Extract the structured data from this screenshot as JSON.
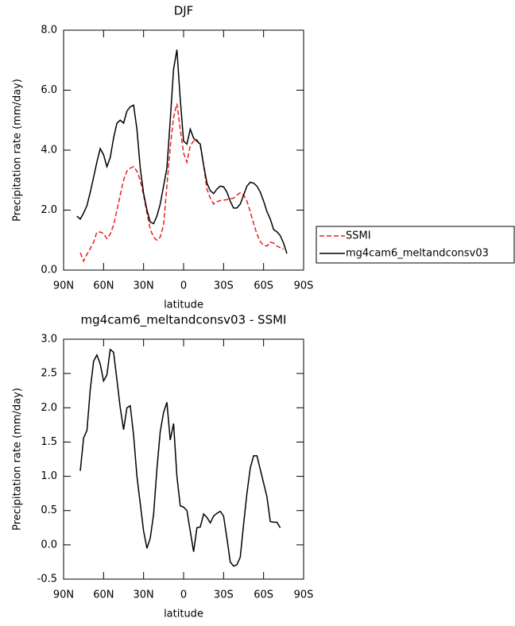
{
  "chart_data": [
    {
      "type": "line",
      "title": "DJF",
      "xlabel": "latitude",
      "ylabel": "Precipitation rate (mm/day)",
      "x": [
        80,
        77.5,
        75,
        72.5,
        70,
        67.5,
        65,
        62.5,
        60,
        57.5,
        55,
        52.5,
        50,
        47.5,
        45,
        42.5,
        40,
        37.5,
        35,
        32.5,
        30,
        27.5,
        25,
        22.5,
        20,
        17.5,
        15,
        12.5,
        10,
        7.5,
        5,
        2.5,
        0,
        -2.5,
        -5,
        -7.5,
        -10,
        -12.5,
        -15,
        -17.5,
        -20,
        -22.5,
        -25,
        -27.5,
        -30,
        -32.5,
        -35,
        -37.5,
        -40,
        -42.5,
        -45,
        -47.5,
        -50,
        -52.5,
        -55,
        -57.5,
        -60,
        -62.5,
        -65,
        -67.5,
        -70,
        -72.5,
        -75,
        -77.5
      ],
      "series": [
        {
          "name": "SSMI",
          "color": "#e8211f",
          "line_style": "dashed",
          "values": [
            null,
            0.58,
            0.3,
            0.53,
            0.72,
            0.93,
            1.27,
            1.27,
            1.22,
            1.05,
            1.2,
            1.5,
            2.0,
            2.5,
            3.0,
            3.3,
            3.4,
            3.45,
            3.3,
            3.0,
            2.5,
            1.9,
            1.35,
            1.1,
            1.0,
            1.1,
            1.5,
            2.8,
            4.1,
            5.1,
            5.55,
            4.7,
            3.9,
            3.6,
            4.15,
            4.3,
            4.35,
            4.15,
            3.5,
            2.7,
            2.4,
            2.2,
            2.28,
            2.32,
            2.33,
            2.35,
            2.38,
            2.4,
            2.5,
            2.58,
            2.5,
            2.3,
            1.95,
            1.55,
            1.2,
            0.95,
            0.83,
            0.8,
            0.93,
            0.9,
            0.8,
            0.75,
            0.7,
            null
          ]
        },
        {
          "name": "mg4cam6_meltandconsv03",
          "color": "#000000",
          "line_style": "solid",
          "values": [
            1.8,
            1.7,
            1.9,
            2.15,
            2.6,
            3.1,
            3.6,
            4.05,
            3.85,
            3.45,
            3.75,
            4.4,
            4.9,
            5.0,
            4.9,
            5.3,
            5.45,
            5.5,
            4.7,
            3.4,
            2.55,
            2.0,
            1.6,
            1.55,
            1.8,
            2.2,
            2.8,
            3.4,
            5.0,
            6.7,
            7.35,
            5.7,
            4.3,
            4.2,
            4.7,
            4.4,
            4.3,
            4.2,
            3.5,
            2.9,
            2.65,
            2.55,
            2.7,
            2.8,
            2.78,
            2.6,
            2.3,
            2.07,
            2.07,
            2.2,
            2.5,
            2.8,
            2.93,
            2.9,
            2.8,
            2.6,
            2.3,
            1.95,
            1.7,
            1.35,
            1.28,
            1.15,
            0.9,
            0.55
          ]
        }
      ],
      "xlim": [
        90,
        -90
      ],
      "xticks": [
        {
          "value": 90,
          "label": "90N"
        },
        {
          "value": 60,
          "label": "60N"
        },
        {
          "value": 30,
          "label": "30N"
        },
        0,
        {
          "value": -30,
          "label": "30S"
        },
        {
          "value": -60,
          "label": "60S"
        },
        {
          "value": -90,
          "label": "90S"
        }
      ],
      "ylim": [
        0,
        8
      ],
      "yticks": [
        {
          "value": 0,
          "label": "0.0"
        },
        {
          "value": 2,
          "label": "2.0"
        },
        {
          "value": 4,
          "label": "4.0"
        },
        {
          "value": 6,
          "label": "6.0"
        },
        {
          "value": 8,
          "label": "8.0"
        }
      ],
      "legend": "right"
    },
    {
      "type": "line",
      "title": "mg4cam6_meltandconsv03 - SSMI",
      "xlabel": "latitude",
      "ylabel": "Precipitation rate (mm/day)",
      "x": [
        77.5,
        75,
        72.5,
        70,
        67.5,
        65,
        62.5,
        60,
        57.5,
        55,
        52.5,
        50,
        47.5,
        45,
        42.5,
        40,
        37.5,
        35,
        32.5,
        30,
        27.5,
        25,
        22.5,
        20,
        17.5,
        15,
        12.5,
        10,
        7.5,
        5,
        2.5,
        0,
        -2.5,
        -5,
        -7.5,
        -10,
        -12.5,
        -15,
        -17.5,
        -20,
        -22.5,
        -25,
        -27.5,
        -30,
        -32.5,
        -35,
        -37.5,
        -40,
        -42.5,
        -45,
        -47.5,
        -50,
        -52.5,
        -55,
        -57.5,
        -60,
        -62.5,
        -65,
        -67.5,
        -70,
        -72.5
      ],
      "values": [
        1.08,
        1.56,
        1.67,
        2.27,
        2.68,
        2.77,
        2.64,
        2.39,
        2.48,
        2.85,
        2.81,
        2.41,
        2.0,
        1.68,
        2.0,
        2.03,
        1.6,
        1.0,
        0.6,
        0.2,
        -0.05,
        0.1,
        0.45,
        1.1,
        1.65,
        1.93,
        2.08,
        1.53,
        1.77,
        1.0,
        0.57,
        0.55,
        0.5,
        0.2,
        -0.1,
        0.25,
        0.26,
        0.45,
        0.4,
        0.32,
        0.42,
        0.46,
        0.49,
        0.42,
        0.1,
        -0.25,
        -0.31,
        -0.29,
        -0.18,
        0.3,
        0.75,
        1.12,
        1.3,
        1.3,
        1.1,
        0.9,
        0.7,
        0.34,
        0.33,
        0.33,
        0.25
      ],
      "color": "#000000",
      "xlim": [
        90,
        -90
      ],
      "xticks": [
        {
          "value": 90,
          "label": "90N"
        },
        {
          "value": 60,
          "label": "60N"
        },
        {
          "value": 30,
          "label": "30N"
        },
        0,
        {
          "value": -30,
          "label": "30S"
        },
        {
          "value": -60,
          "label": "60S"
        },
        {
          "value": -90,
          "label": "90S"
        }
      ],
      "ylim": [
        -0.5,
        3.0
      ],
      "yticks": [
        -0.5,
        {
          "value": 0,
          "label": "0.0"
        },
        0.5,
        {
          "value": 1,
          "label": "1.0"
        },
        1.5,
        {
          "value": 2,
          "label": "2.0"
        },
        2.5,
        {
          "value": 3,
          "label": "3.0"
        }
      ]
    }
  ]
}
